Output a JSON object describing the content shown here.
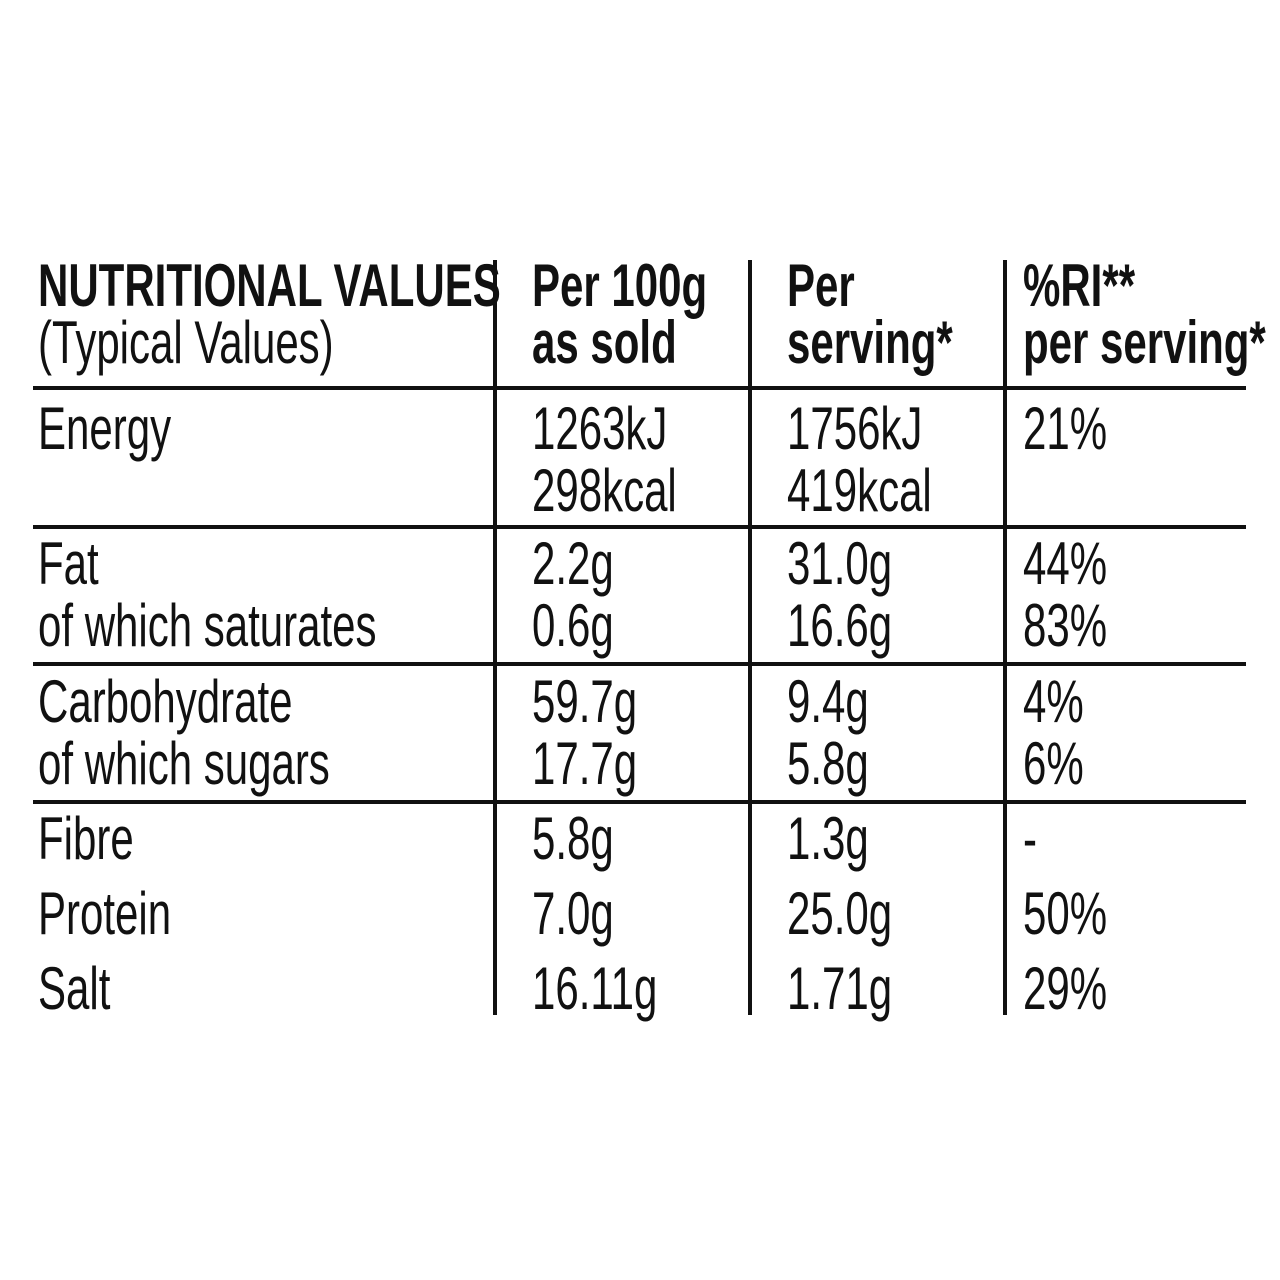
{
  "table": {
    "header": [
      [
        "NUTRITIONAL VALUES",
        "(Typical Values)"
      ],
      [
        "Per 100g",
        "as sold"
      ],
      [
        "Per",
        "serving*"
      ],
      [
        "%RI**",
        "per serving*"
      ]
    ],
    "rows": [
      [
        [
          "Energy"
        ],
        [
          "1263kJ",
          "298kcal"
        ],
        [
          "1756kJ",
          "419kcal"
        ],
        [
          "21%"
        ]
      ],
      [
        [
          "Fat",
          "of which saturates"
        ],
        [
          "2.2g",
          "0.6g"
        ],
        [
          "31.0g",
          "16.6g"
        ],
        [
          "44%",
          "83%"
        ]
      ],
      [
        [
          "Carbohydrate",
          "of which sugars"
        ],
        [
          "59.7g",
          "17.7g"
        ],
        [
          "9.4g",
          "5.8g"
        ],
        [
          "4%",
          "6%"
        ]
      ],
      [
        [
          "Fibre"
        ],
        [
          "5.8g"
        ],
        [
          "1.3g"
        ],
        [
          "-"
        ]
      ],
      [
        [
          "Protein"
        ],
        [
          "7.0g"
        ],
        [
          "25.0g"
        ],
        [
          "50%"
        ]
      ],
      [
        [
          "Salt"
        ],
        [
          "16.11g"
        ],
        [
          "1.71g"
        ],
        [
          "29%"
        ]
      ]
    ]
  }
}
